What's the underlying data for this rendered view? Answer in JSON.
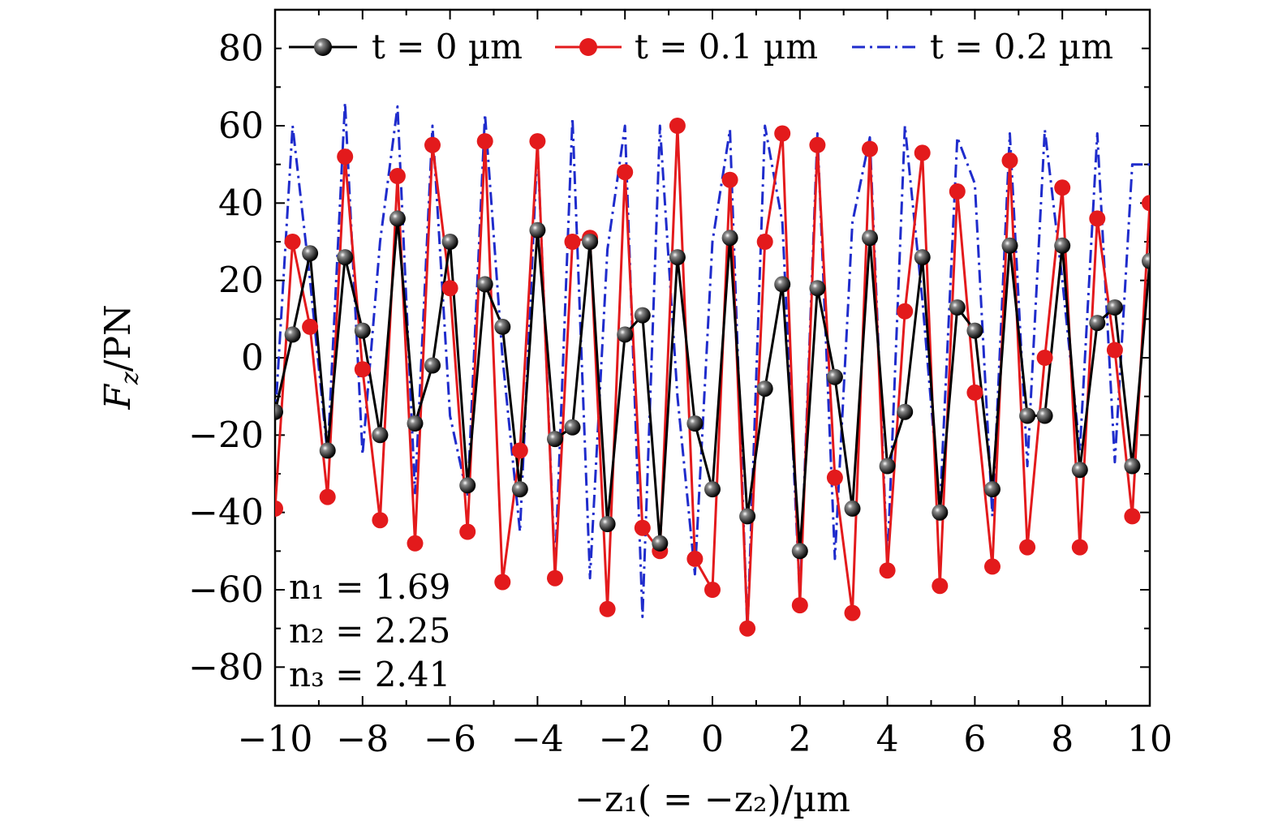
{
  "chart_data": {
    "type": "line",
    "title": "",
    "xlabel": "−z₁( = −z₂)/µm",
    "ylabel": "F_z/PN",
    "ylabel_parts": {
      "main": "F",
      "sub": "z",
      "rest": "/PN"
    },
    "xlim": [
      -10,
      10
    ],
    "ylim": [
      -90,
      90
    ],
    "xticks": [
      -10,
      -8,
      -6,
      -4,
      -2,
      0,
      2,
      4,
      6,
      8,
      10
    ],
    "xtick_labels": [
      "−10",
      "−8",
      "−6",
      "−4",
      "−2",
      "0",
      "2",
      "4",
      "6",
      "8",
      "10"
    ],
    "yticks": [
      -80,
      -60,
      -40,
      -20,
      0,
      20,
      40,
      60,
      80
    ],
    "ytick_labels": [
      "−80",
      "−60",
      "−40",
      "−20",
      "0",
      "20",
      "40",
      "60",
      "80"
    ],
    "grid": false,
    "legend_position": "top",
    "x": [
      -10,
      -9.6,
      -9.2,
      -8.8,
      -8.4,
      -8.0,
      -7.6,
      -7.2,
      -6.8,
      -6.4,
      -6.0,
      -5.6,
      -5.2,
      -4.8,
      -4.4,
      -4.0,
      -3.6,
      -3.2,
      -2.8,
      -2.4,
      -2.0,
      -1.6,
      -1.2,
      -0.8,
      -0.4,
      0.0,
      0.4,
      0.8,
      1.2,
      1.6,
      2.0,
      2.4,
      2.8,
      3.2,
      3.6,
      4.0,
      4.4,
      4.8,
      5.2,
      5.6,
      6.0,
      6.4,
      6.8,
      7.2,
      7.6,
      8.0,
      8.4,
      8.8,
      9.2,
      9.6,
      10.0
    ],
    "series": [
      {
        "name": "t = 0 µm",
        "color": "#000000",
        "marker": "sphere",
        "dash": "solid",
        "values": [
          -14,
          6,
          27,
          -24,
          26,
          7,
          -20,
          36,
          -17,
          -2,
          30,
          -33,
          19,
          8,
          -34,
          33,
          -21,
          -18,
          30,
          -43,
          6,
          11,
          -48,
          26,
          -17,
          -34,
          31,
          -41,
          -8,
          19,
          -50,
          18,
          -5,
          -39,
          31,
          -28,
          -14,
          26,
          -40,
          13,
          7,
          -34,
          29,
          -15,
          -15,
          29,
          -29,
          9,
          13,
          -28,
          25
        ]
      },
      {
        "name": "t = 0.1 µm",
        "color": "#e31a1c",
        "marker": "circle",
        "dash": "solid",
        "values": [
          -39,
          30,
          8,
          -36,
          52,
          -3,
          -42,
          47,
          -48,
          55,
          18,
          -45,
          56,
          -58,
          -24,
          56,
          -57,
          30,
          31,
          -65,
          48,
          -44,
          -50,
          60,
          -52,
          -60,
          46,
          -70,
          30,
          58,
          -64,
          55,
          -31,
          -66,
          54,
          -55,
          12,
          53,
          -59,
          43,
          -9,
          -54,
          51,
          -49,
          0,
          44,
          -49,
          36,
          2,
          -41,
          40
        ]
      },
      {
        "name": "t = 0.2 µm",
        "color": "#1f2ccc",
        "marker": "none",
        "dash": "dashdot",
        "values": [
          -16,
          60,
          20,
          -25,
          66,
          -25,
          30,
          65,
          -35,
          60,
          -15,
          -36,
          63,
          0,
          -45,
          55,
          -55,
          62,
          -57,
          28,
          60,
          -67,
          60,
          -10,
          -56,
          30,
          59,
          -71,
          60,
          35,
          -62,
          58,
          -52,
          35,
          57,
          -53,
          60,
          15,
          -39,
          57,
          45,
          -41,
          58,
          -28,
          59,
          20,
          -24,
          58,
          -27,
          50,
          50
        ]
      }
    ],
    "annotations": [
      "n₁ = 1.69",
      "n₂ = 2.25",
      "n₃ = 2.41"
    ]
  }
}
